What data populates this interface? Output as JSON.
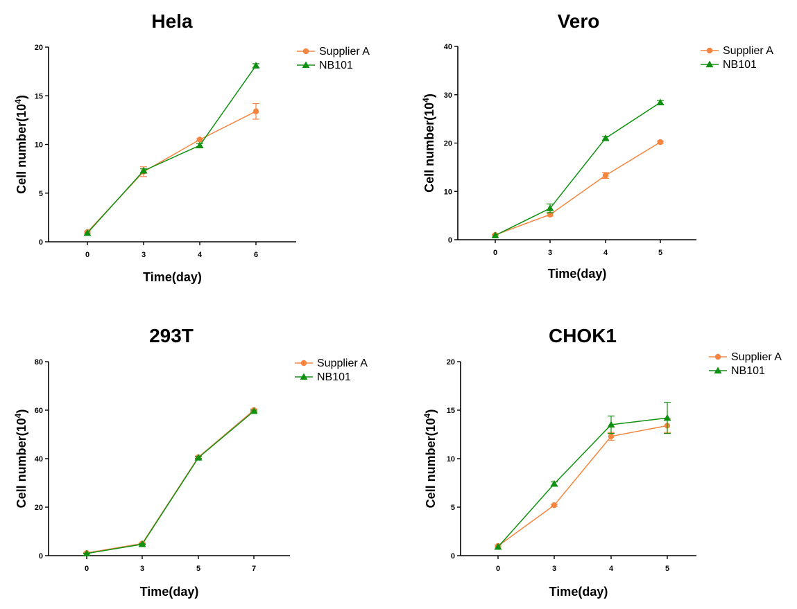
{
  "colors": {
    "supplier_a": "#f58540",
    "nb101": "#109010",
    "axis": "#000000"
  },
  "chart_data": [
    {
      "type": "line",
      "title": "Hela",
      "xlabel": "Time(day)",
      "ylabel": "Cell number(10",
      "ylabel_sup": "4",
      "ylabel_close": ")",
      "categories": [
        "0",
        "3",
        "4",
        "6"
      ],
      "ylim": [
        0,
        20
      ],
      "yticks": [
        0,
        5,
        10,
        15,
        20
      ],
      "legend_position": "top-right",
      "series": [
        {
          "name": "Supplier A",
          "marker": "circle",
          "values": [
            1.0,
            7.2,
            10.5,
            13.4
          ],
          "errors": [
            0.1,
            0.5,
            0.1,
            0.8
          ]
        },
        {
          "name": "NB101",
          "marker": "triangle",
          "values": [
            0.9,
            7.3,
            9.9,
            18.1
          ],
          "errors": [
            0.0,
            0.2,
            0.2,
            0.2
          ]
        }
      ]
    },
    {
      "type": "line",
      "title": "Vero",
      "xlabel": "Time(day)",
      "ylabel": "Cell number(10",
      "ylabel_sup": "4",
      "ylabel_close": ")",
      "categories": [
        "0",
        "3",
        "4",
        "5"
      ],
      "ylim": [
        0,
        40
      ],
      "yticks": [
        0,
        10,
        20,
        30,
        40
      ],
      "legend_position": "top-right",
      "series": [
        {
          "name": "Supplier A",
          "marker": "circle",
          "values": [
            1.0,
            5.2,
            13.3,
            20.2
          ],
          "errors": [
            0.1,
            0.3,
            0.6,
            0.2
          ]
        },
        {
          "name": "NB101",
          "marker": "triangle",
          "values": [
            0.9,
            6.5,
            21.0,
            28.4
          ],
          "errors": [
            0.0,
            0.9,
            0.4,
            0.4
          ]
        }
      ]
    },
    {
      "type": "line",
      "title": "293T",
      "xlabel": "Time(day)",
      "ylabel": "Cell number(10",
      "ylabel_sup": "4",
      "ylabel_close": ")",
      "categories": [
        "0",
        "3",
        "5",
        "7"
      ],
      "ylim": [
        0,
        80
      ],
      "yticks": [
        0,
        20,
        40,
        60,
        80
      ],
      "legend_position": "top-right",
      "series": [
        {
          "name": "Supplier A",
          "marker": "circle",
          "values": [
            1.1,
            5.0,
            40.6,
            60.0
          ],
          "errors": [
            0.2,
            0.3,
            0.5,
            0.5
          ]
        },
        {
          "name": "NB101",
          "marker": "triangle",
          "values": [
            0.9,
            4.7,
            40.4,
            59.6
          ],
          "errors": [
            0.1,
            0.2,
            0.4,
            0.4
          ]
        }
      ]
    },
    {
      "type": "line",
      "title": "CHOK1",
      "xlabel": "Time(day)",
      "ylabel": "Cell number(10",
      "ylabel_sup": "4",
      "ylabel_close": ")",
      "categories": [
        "0",
        "3",
        "4",
        "5"
      ],
      "ylim": [
        0,
        20
      ],
      "yticks": [
        0,
        5,
        10,
        15,
        20
      ],
      "legend_position": "top-right",
      "series": [
        {
          "name": "Supplier A",
          "marker": "circle",
          "values": [
            1.0,
            5.2,
            12.3,
            13.4
          ],
          "errors": [
            0.1,
            0.1,
            0.4,
            0.7
          ]
        },
        {
          "name": "NB101",
          "marker": "triangle",
          "values": [
            0.9,
            7.4,
            13.5,
            14.2
          ],
          "errors": [
            0.0,
            0.2,
            0.9,
            1.6
          ]
        }
      ]
    }
  ]
}
